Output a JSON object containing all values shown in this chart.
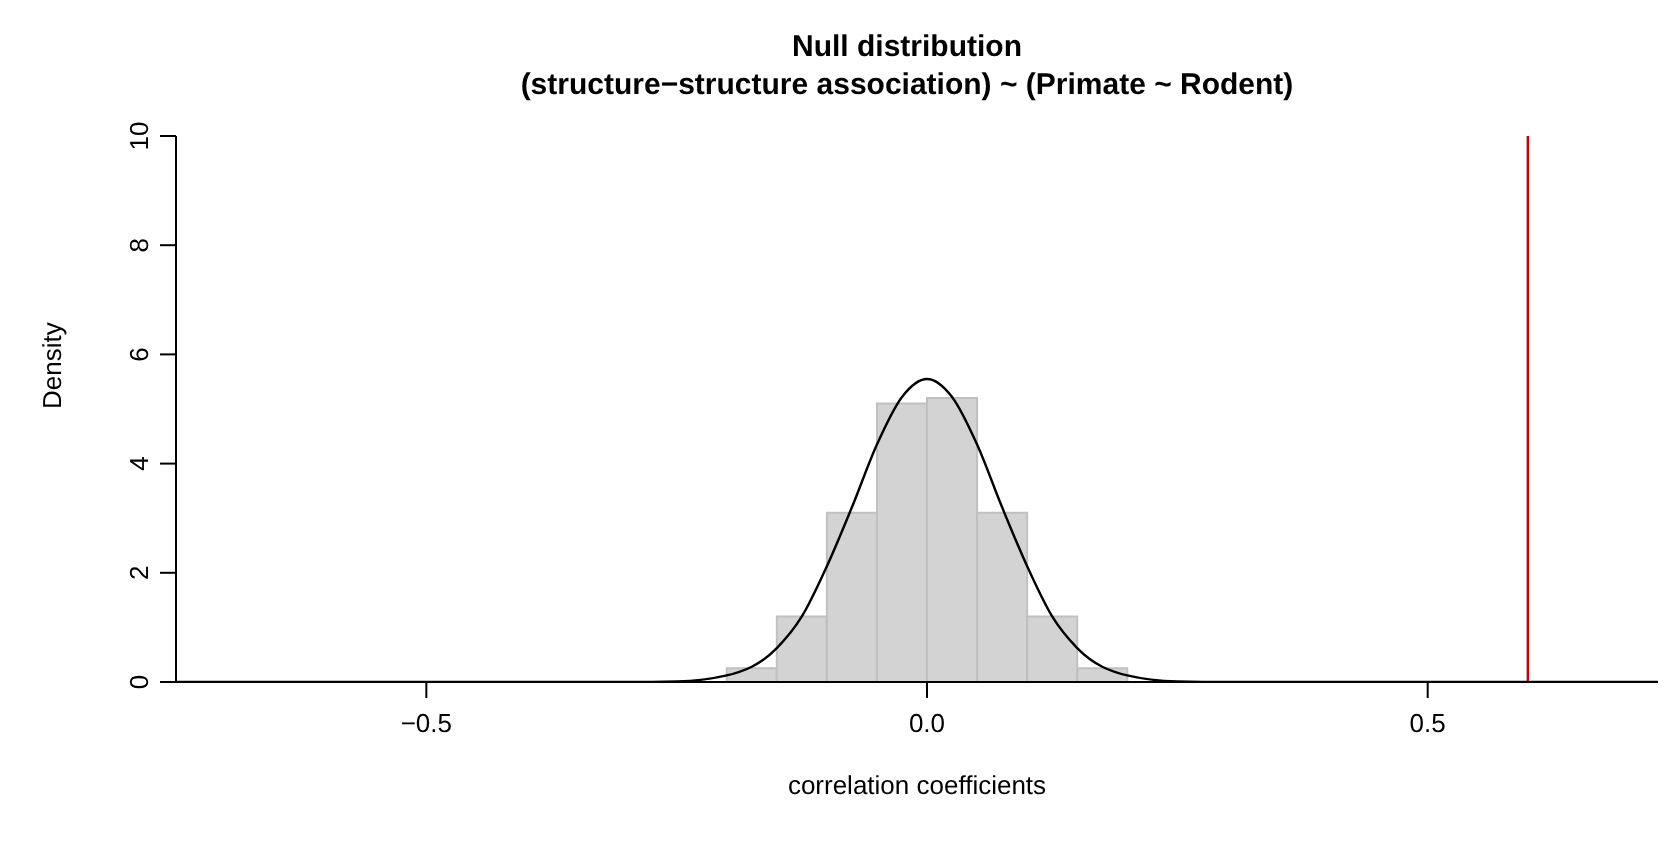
{
  "chart_data": {
    "type": "histogram",
    "title": "Null distribution",
    "subtitle": "(structure−structure association) ~ (Primate ~ Rodent)",
    "xlabel": "correlation coefficients",
    "ylabel": "Density",
    "bins": [
      -0.2,
      -0.15,
      -0.1,
      -0.05,
      0,
      0.05,
      0.1,
      0.15,
      0.2
    ],
    "values": [
      0.25,
      1.2,
      3.1,
      5.1,
      5.2,
      3.1,
      1.2,
      0.25
    ],
    "color": "#d3d3d3",
    "series": [
      {
        "type": "line",
        "color": "#000000",
        "x": [
          -0.75,
          -0.3,
          -0.25,
          -0.2,
          -0.15,
          -0.125,
          -0.1,
          -0.075,
          -0.05,
          -0.025,
          0,
          0.025,
          0.05,
          0.075,
          0.1,
          0.125,
          0.15,
          0.2,
          0.25,
          0.3,
          0.73
        ],
        "values": [
          0,
          0,
          0.01,
          0.12,
          0.62,
          1.2,
          2.12,
          3.2,
          4.35,
          5.22,
          5.55,
          5.22,
          4.35,
          3.2,
          2.12,
          1.2,
          0.62,
          0.12,
          0.01,
          0,
          0
        ]
      }
    ],
    "ref_lines": [
      {
        "axis": "x",
        "value": 0.6,
        "color": "#cc0000"
      }
    ],
    "xlim": [
      -0.75,
      0.73
    ],
    "xticks": [
      {
        "value": -0.5,
        "label": "−0.5"
      },
      {
        "value": 0,
        "label": "0.0"
      },
      {
        "value": 0.5,
        "label": "0.5"
      }
    ],
    "ylim": [
      0,
      10
    ],
    "yticks": [
      0,
      2,
      4,
      6,
      8,
      10
    ],
    "grid": false,
    "legend": false
  }
}
